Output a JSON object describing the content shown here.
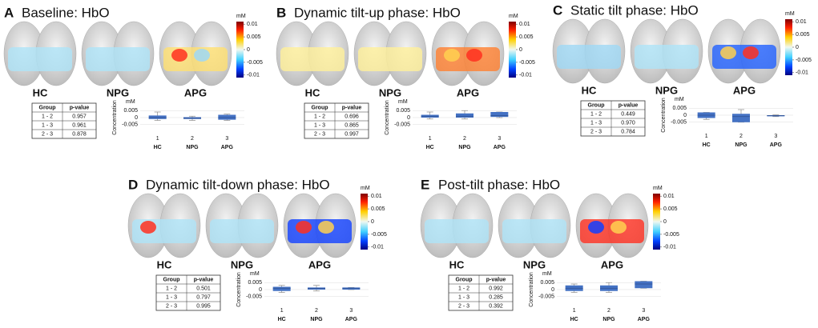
{
  "panels": [
    {
      "letter": "A",
      "title": "Baseline: HbO",
      "brains": [
        "HC",
        "NPG",
        "APG"
      ],
      "colorbar": {
        "unit": "mM",
        "clim": [
          -0.011,
          0.011
        ],
        "ticks": [
          0.01,
          0.005,
          0,
          -0.005,
          -0.01
        ]
      },
      "table": {
        "header": [
          "Group",
          "p-value"
        ],
        "rows": [
          [
            "1 - 2",
            "0.957"
          ],
          [
            "1 - 3",
            "0.961"
          ],
          [
            "2 - 3",
            "0.878"
          ]
        ]
      },
      "boxplot": {
        "unit": "mM",
        "ylabel": "Concentration",
        "ylim": [
          -0.008,
          0.008
        ],
        "yticks": [
          0.005,
          0,
          -0.005
        ],
        "categories": [
          "1",
          "2",
          "3"
        ],
        "groups": [
          "HC",
          "NPG",
          "APG"
        ],
        "boxes": [
          {
            "low": -0.002,
            "q1": -0.001,
            "median": 0,
            "q3": 0.0015,
            "high": 0.004
          },
          {
            "low": -0.002,
            "q1": -0.001,
            "median": -0.0004,
            "q3": 0.0003,
            "high": 0.001
          },
          {
            "low": -0.002,
            "q1": -0.0015,
            "median": 0,
            "q3": 0.002,
            "high": 0.0025
          }
        ]
      }
    },
    {
      "letter": "B",
      "title": "Dynamic tilt-up phase: HbO",
      "brains": [
        "HC",
        "NPG",
        "APG"
      ],
      "colorbar": {
        "unit": "mM",
        "clim": [
          -0.011,
          0.011
        ],
        "ticks": [
          0.01,
          0.005,
          0,
          -0.005,
          -0.01
        ]
      },
      "table": {
        "header": [
          "Group",
          "p-value"
        ],
        "rows": [
          [
            "1 - 2",
            "0.696"
          ],
          [
            "1 - 3",
            "0.865"
          ],
          [
            "2 - 3",
            "0.997"
          ]
        ]
      },
      "boxplot": {
        "unit": "mM",
        "ylabel": "Concentration",
        "ylim": [
          -0.008,
          0.008
        ],
        "yticks": [
          0.005,
          0,
          -0.005
        ],
        "categories": [
          "1",
          "2",
          "3"
        ],
        "groups": [
          "HC",
          "NPG",
          "APG"
        ],
        "boxes": [
          {
            "low": -0.001,
            "q1": 0,
            "median": 0.001,
            "q3": 0.002,
            "high": 0.004
          },
          {
            "low": -0.001,
            "q1": 0,
            "median": 0.001,
            "q3": 0.003,
            "high": 0.005
          },
          {
            "low": 0,
            "q1": 0.0005,
            "median": 0.0015,
            "q3": 0.004,
            "high": 0.004
          }
        ]
      }
    },
    {
      "letter": "C",
      "title": "Static tilt phase: HbO",
      "brains": [
        "HC",
        "NPG",
        "APG"
      ],
      "colorbar": {
        "unit": "mM",
        "clim": [
          -0.011,
          0.011
        ],
        "ticks": [
          0.01,
          0.005,
          0,
          -0.005,
          -0.01
        ]
      },
      "table": {
        "header": [
          "Group",
          "p-value"
        ],
        "rows": [
          [
            "1 - 2",
            "0.449"
          ],
          [
            "1 - 3",
            "0.970"
          ],
          [
            "2 - 3",
            "0.784"
          ]
        ]
      },
      "boxplot": {
        "unit": "mM",
        "ylabel": "Concentration",
        "ylim": [
          -0.008,
          0.008
        ],
        "yticks": [
          0.005,
          0,
          -0.005
        ],
        "categories": [
          "1",
          "2",
          "3"
        ],
        "groups": [
          "HC",
          "NPG",
          "APG"
        ],
        "boxes": [
          {
            "low": -0.003,
            "q1": -0.002,
            "median": 0,
            "q3": 0.002,
            "high": 0.002
          },
          {
            "low": -0.005,
            "q1": -0.005,
            "median": -0.001,
            "q3": 0.001,
            "high": 0.004
          },
          {
            "low": -0.001,
            "q1": -0.0008,
            "median": -0.0003,
            "q3": 0,
            "high": 0.0002
          }
        ]
      }
    },
    {
      "letter": "D",
      "title": "Dynamic tilt-down phase: HbO",
      "brains": [
        "HC",
        "NPG",
        "APG"
      ],
      "colorbar": {
        "unit": "mM",
        "clim": [
          -0.011,
          0.011
        ],
        "ticks": [
          0.01,
          0.005,
          0,
          -0.005,
          -0.01
        ]
      },
      "table": {
        "header": [
          "Group",
          "p-value"
        ],
        "rows": [
          [
            "1 - 2",
            "0.501"
          ],
          [
            "1 - 3",
            "0.797"
          ],
          [
            "2 - 3",
            "0.995"
          ]
        ]
      },
      "boxplot": {
        "unit": "mM",
        "ylabel": "Concentration",
        "ylim": [
          -0.008,
          0.008
        ],
        "yticks": [
          0.005,
          0,
          -0.005
        ],
        "categories": [
          "1",
          "2",
          "3"
        ],
        "groups": [
          "HC",
          "NPG",
          "APG"
        ],
        "boxes": [
          {
            "low": -0.002,
            "q1": -0.001,
            "median": 0.001,
            "q3": 0.002,
            "high": 0.003
          },
          {
            "low": -0.001,
            "q1": 0,
            "median": 0.0008,
            "q3": 0.0015,
            "high": 0.003
          },
          {
            "low": 0,
            "q1": 0,
            "median": 0.001,
            "q3": 0.0015,
            "high": 0.0015
          }
        ]
      }
    },
    {
      "letter": "E",
      "title": "Post-tilt phase: HbO",
      "brains": [
        "HC",
        "NPG",
        "APG"
      ],
      "colorbar": {
        "unit": "mM",
        "clim": [
          -0.011,
          0.011
        ],
        "ticks": [
          0.01,
          0.005,
          0,
          -0.005,
          -0.01
        ]
      },
      "table": {
        "header": [
          "Group",
          "p-value"
        ],
        "rows": [
          [
            "1 - 2",
            "0.992"
          ],
          [
            "1 - 3",
            "0.285"
          ],
          [
            "2 - 3",
            "0.392"
          ]
        ]
      },
      "boxplot": {
        "unit": "mM",
        "ylabel": "Concentration",
        "ylim": [
          -0.008,
          0.008
        ],
        "yticks": [
          0.005,
          0,
          -0.005
        ],
        "categories": [
          "1",
          "2",
          "3"
        ],
        "groups": [
          "HC",
          "NPG",
          "APG"
        ],
        "boxes": [
          {
            "low": -0.002,
            "q1": -0.001,
            "median": 0.001,
            "q3": 0.003,
            "high": 0.004
          },
          {
            "low": -0.002,
            "q1": -0.001,
            "median": 0.001,
            "q3": 0.003,
            "high": 0.005
          },
          {
            "low": 0.001,
            "q1": 0.001,
            "median": 0.004,
            "q3": 0.006,
            "high": 0.006
          }
        ]
      }
    }
  ]
}
